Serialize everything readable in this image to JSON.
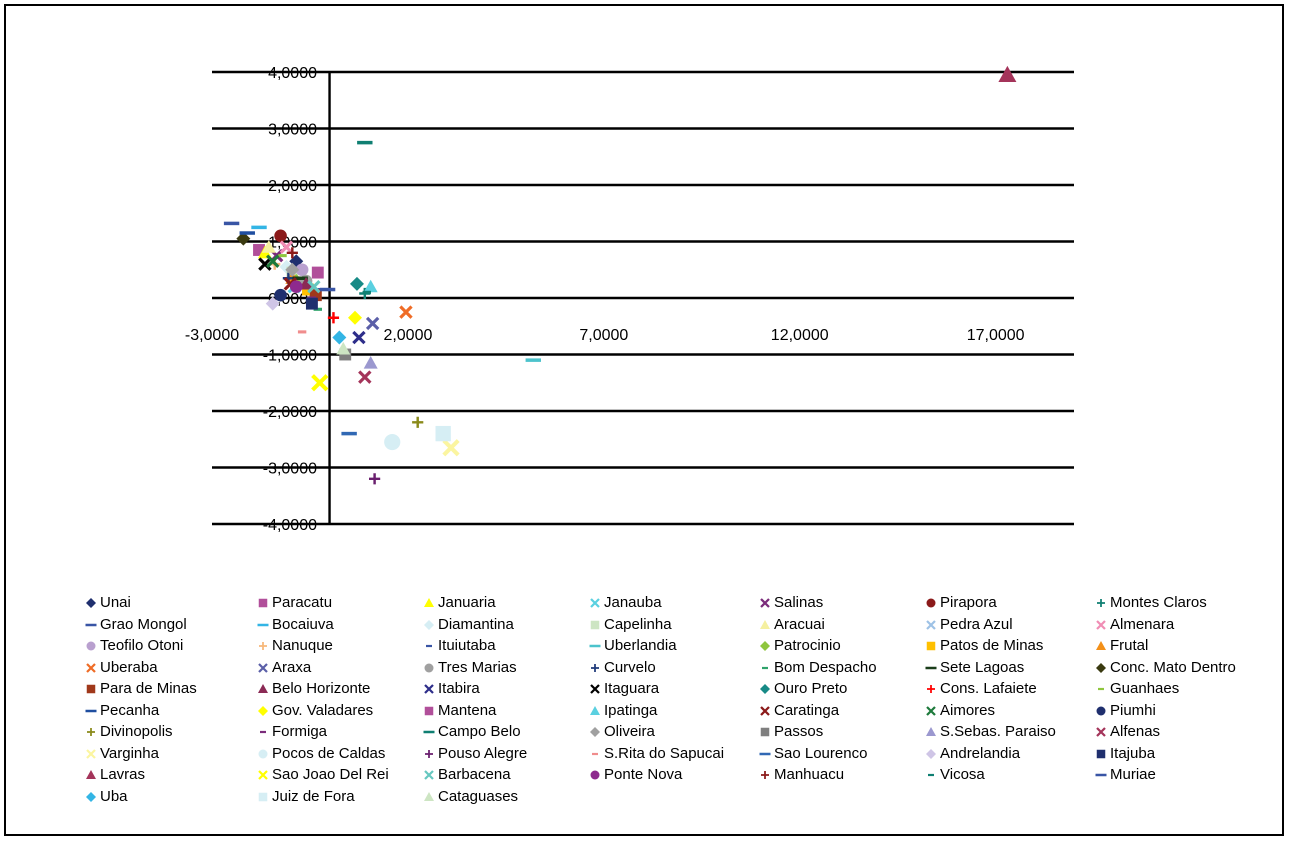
{
  "chart_data": {
    "type": "scatter",
    "title": "",
    "xlabel": "",
    "ylabel": "",
    "xlim": [
      -3,
      19
    ],
    "ylim": [
      -4,
      4
    ],
    "x_ticks": [
      -3,
      2,
      7,
      12,
      17
    ],
    "x_tick_labels": [
      "-3,0000",
      "2,0000",
      "7,0000",
      "12,0000",
      "17,0000"
    ],
    "y_ticks": [
      4,
      3,
      2,
      1,
      0,
      -1,
      -2,
      -3,
      -4
    ],
    "y_tick_labels": [
      "4,0000",
      "3,0000",
      "2,0000",
      "1,0000",
      "0,0000",
      "-1,0000",
      "-2,0000",
      "-3,0000",
      "-4,0000"
    ],
    "grid": "horizontal",
    "legend_position": "bottom",
    "series": [
      {
        "name": "Unai",
        "marker": "diamond",
        "color": "#1f2f6e",
        "x": -0.85,
        "y": 0.65
      },
      {
        "name": "Paracatu",
        "marker": "square",
        "color": "#b14f9a",
        "x": -1.8,
        "y": 0.85
      },
      {
        "name": "Januaria",
        "marker": "triangle",
        "color": "#ffff00",
        "x": -1.65,
        "y": 0.8
      },
      {
        "name": "Janauba",
        "marker": "x",
        "color": "#5ad0e0",
        "x": -0.9,
        "y": 0.2
      },
      {
        "name": "Salinas",
        "marker": "x",
        "color": "#7b2c7b",
        "x": -1.35,
        "y": 0.75
      },
      {
        "name": "Pirapora",
        "marker": "circle",
        "color": "#8b1a1a",
        "x": -1.25,
        "y": 1.1
      },
      {
        "name": "Montes Claros",
        "marker": "plus",
        "color": "#0f7f72",
        "x": 0.9,
        "y": 0.08
      },
      {
        "name": "Grao Mongol",
        "marker": "dash",
        "color": "#3955a5",
        "x": -2.5,
        "y": 1.32
      },
      {
        "name": "Bocaiuva",
        "marker": "dash",
        "color": "#33b5e5",
        "x": -1.8,
        "y": 1.25
      },
      {
        "name": "Diamantina",
        "marker": "diamond",
        "color": "#d6eef4",
        "x": -1.1,
        "y": 0.55
      },
      {
        "name": "Capelinha",
        "marker": "square",
        "color": "#cde5c3",
        "x": -0.95,
        "y": 0.45
      },
      {
        "name": "Aracuai",
        "marker": "triangle",
        "color": "#f5f0a0",
        "x": -1.55,
        "y": 0.9
      },
      {
        "name": "Pedra Azul",
        "marker": "x",
        "color": "#9ec2e6",
        "x": -0.45,
        "y": 0.05
      },
      {
        "name": "Almenara",
        "marker": "x",
        "color": "#f08db5",
        "x": -1.1,
        "y": 0.9
      },
      {
        "name": "Teofilo Otoni",
        "marker": "circle",
        "color": "#b9a0cf",
        "x": -0.7,
        "y": 0.5
      },
      {
        "name": "Nanuque",
        "marker": "plus",
        "color": "#f7b87a",
        "x": -1.4,
        "y": 0.6
      },
      {
        "name": "Ituiutaba",
        "marker": "dash-small",
        "color": "#3955a5",
        "x": -0.3,
        "y": 0.15
      },
      {
        "name": "Uberlandia",
        "marker": "dash",
        "color": "#4cc3cc",
        "x": 5.2,
        "y": -1.1
      },
      {
        "name": "Patrocinio",
        "marker": "diamond",
        "color": "#8fc63e",
        "x": -0.85,
        "y": 0.3
      },
      {
        "name": "Patos de Minas",
        "marker": "square",
        "color": "#ffc000",
        "x": -0.55,
        "y": 0.15
      },
      {
        "name": "Frutal",
        "marker": "triangle",
        "color": "#f39019",
        "x": -0.95,
        "y": 0.35
      },
      {
        "name": "Uberaba",
        "marker": "x",
        "color": "#ef6c26",
        "x": 1.95,
        "y": -0.25
      },
      {
        "name": "Araxa",
        "marker": "x",
        "color": "#5b5fa8",
        "x": 1.1,
        "y": -0.45
      },
      {
        "name": "Tres Marias",
        "marker": "circle",
        "color": "#a0a0a0",
        "x": -0.6,
        "y": 0.3
      },
      {
        "name": "Curvelo",
        "marker": "plus",
        "color": "#1f3a7a",
        "x": -1.05,
        "y": 0.35
      },
      {
        "name": "Bom Despacho",
        "marker": "dash-small",
        "color": "#2fa36b",
        "x": -0.3,
        "y": -0.2
      },
      {
        "name": "Sete Lagoas",
        "marker": "dash",
        "color": "#1a3d1a",
        "x": -0.75,
        "y": 0.35
      },
      {
        "name": "Conc. Mato Dentro",
        "marker": "diamond",
        "color": "#3a3a10",
        "x": -2.2,
        "y": 1.05
      },
      {
        "name": "Para de Minas",
        "marker": "square",
        "color": "#a0381a",
        "x": -0.35,
        "y": 0.05
      },
      {
        "name": "Belo Horizonte",
        "marker": "triangle",
        "color": "#8b2a55",
        "x": -0.6,
        "y": 0.25
      },
      {
        "name": "Itabira",
        "marker": "x",
        "color": "#2e2e8a",
        "x": 0.75,
        "y": -0.7
      },
      {
        "name": "Itaguara",
        "marker": "x",
        "color": "#000000",
        "x": -1.65,
        "y": 0.6
      },
      {
        "name": "Ouro Preto",
        "marker": "diamond",
        "color": "#178a86",
        "x": 0.7,
        "y": 0.25
      },
      {
        "name": "Cons. Lafaiete",
        "marker": "plus",
        "color": "#ff0000",
        "x": 0.1,
        "y": -0.35
      },
      {
        "name": "Guanhaes",
        "marker": "dash-small",
        "color": "#8fc63e",
        "x": -1.2,
        "y": 0.75
      },
      {
        "name": "Pecanha",
        "marker": "dash",
        "color": "#1f4ea0",
        "x": -2.1,
        "y": 1.15
      },
      {
        "name": "Gov. Valadares",
        "marker": "diamond",
        "color": "#ffff00",
        "x": 0.65,
        "y": -0.35
      },
      {
        "name": "Mantena",
        "marker": "square",
        "color": "#b14f9a",
        "x": -0.3,
        "y": 0.45
      },
      {
        "name": "Ipatinga",
        "marker": "triangle",
        "color": "#5ad0e0",
        "x": 1.05,
        "y": 0.2
      },
      {
        "name": "Caratinga",
        "marker": "x",
        "color": "#8b1a1a",
        "x": -1.0,
        "y": 0.25
      },
      {
        "name": "Aimores",
        "marker": "x",
        "color": "#1e7a3c",
        "x": -1.45,
        "y": 0.65
      },
      {
        "name": "Piumhi",
        "marker": "circle",
        "color": "#1f2f6e",
        "x": -1.25,
        "y": 0.05
      },
      {
        "name": "Divinopolis",
        "marker": "plus",
        "color": "#8a8a1a",
        "x": 2.25,
        "y": -2.2
      },
      {
        "name": "Formiga",
        "marker": "dash-small",
        "color": "#7b2c7b",
        "x": -0.45,
        "y": 0.0
      },
      {
        "name": "Campo Belo",
        "marker": "dash",
        "color": "#0f7f72",
        "x": 0.9,
        "y": 2.75
      },
      {
        "name": "Oliveira",
        "marker": "diamond",
        "color": "#a0a0a0",
        "x": -0.95,
        "y": 0.5
      },
      {
        "name": "Passos",
        "marker": "square",
        "color": "#7f7f7f",
        "x": 0.4,
        "y": -1.0
      },
      {
        "name": "S.Sebas. Paraiso",
        "marker": "triangle",
        "color": "#9b98cf",
        "x": 1.05,
        "y": -1.15
      },
      {
        "name": "Alfenas",
        "marker": "x",
        "color": "#a4345a",
        "x": 0.9,
        "y": -1.4
      },
      {
        "name": "Varginha",
        "marker": "x",
        "color": "#fbf5a0",
        "x": 3.1,
        "y": -2.65
      },
      {
        "name": "Pocos de Caldas",
        "marker": "circle",
        "color": "#d6eef4",
        "x": 1.6,
        "y": -2.55
      },
      {
        "name": "Pouso Alegre",
        "marker": "plus",
        "color": "#6a1f6e",
        "x": 1.15,
        "y": -3.2
      },
      {
        "name": "S.Rita do Sapucai",
        "marker": "dash-small",
        "color": "#f08d8d",
        "x": -0.7,
        "y": -0.6
      },
      {
        "name": "Sao Lourenco",
        "marker": "dash",
        "color": "#3168b4",
        "x": 0.5,
        "y": -2.4
      },
      {
        "name": "Andrelandia",
        "marker": "diamond",
        "color": "#cfc5e6",
        "x": -1.45,
        "y": -0.1
      },
      {
        "name": "Itajuba",
        "marker": "square",
        "color": "#1f2f6e",
        "x": -0.45,
        "y": -0.1
      },
      {
        "name": "Lavras",
        "marker": "triangle",
        "color": "#a4345a",
        "x": 17.3,
        "y": 3.95
      },
      {
        "name": "Sao Joao Del Rei",
        "marker": "x",
        "color": "#ffff00",
        "x": -0.25,
        "y": -1.5
      },
      {
        "name": "Barbacena",
        "marker": "x",
        "color": "#66c7c0",
        "x": -0.4,
        "y": 0.2
      },
      {
        "name": "Ponte Nova",
        "marker": "circle",
        "color": "#8e2a8e",
        "x": -0.85,
        "y": 0.2
      },
      {
        "name": "Manhuacu",
        "marker": "plus",
        "color": "#8b1a1a",
        "x": -0.95,
        "y": 0.8
      },
      {
        "name": "Vicosa",
        "marker": "dash-small",
        "color": "#0f7f72",
        "x": 0.95,
        "y": 0.1
      },
      {
        "name": "Muriae",
        "marker": "dash",
        "color": "#3955a5",
        "x": -0.05,
        "y": 0.15
      },
      {
        "name": "Uba",
        "marker": "diamond",
        "color": "#33b5e5",
        "x": 0.25,
        "y": -0.7
      },
      {
        "name": "Juiz de Fora",
        "marker": "square",
        "color": "#d6eef4",
        "x": 2.9,
        "y": -2.4
      },
      {
        "name": "Cataguases",
        "marker": "triangle",
        "color": "#cde5c3",
        "x": 0.35,
        "y": -0.9
      }
    ]
  }
}
